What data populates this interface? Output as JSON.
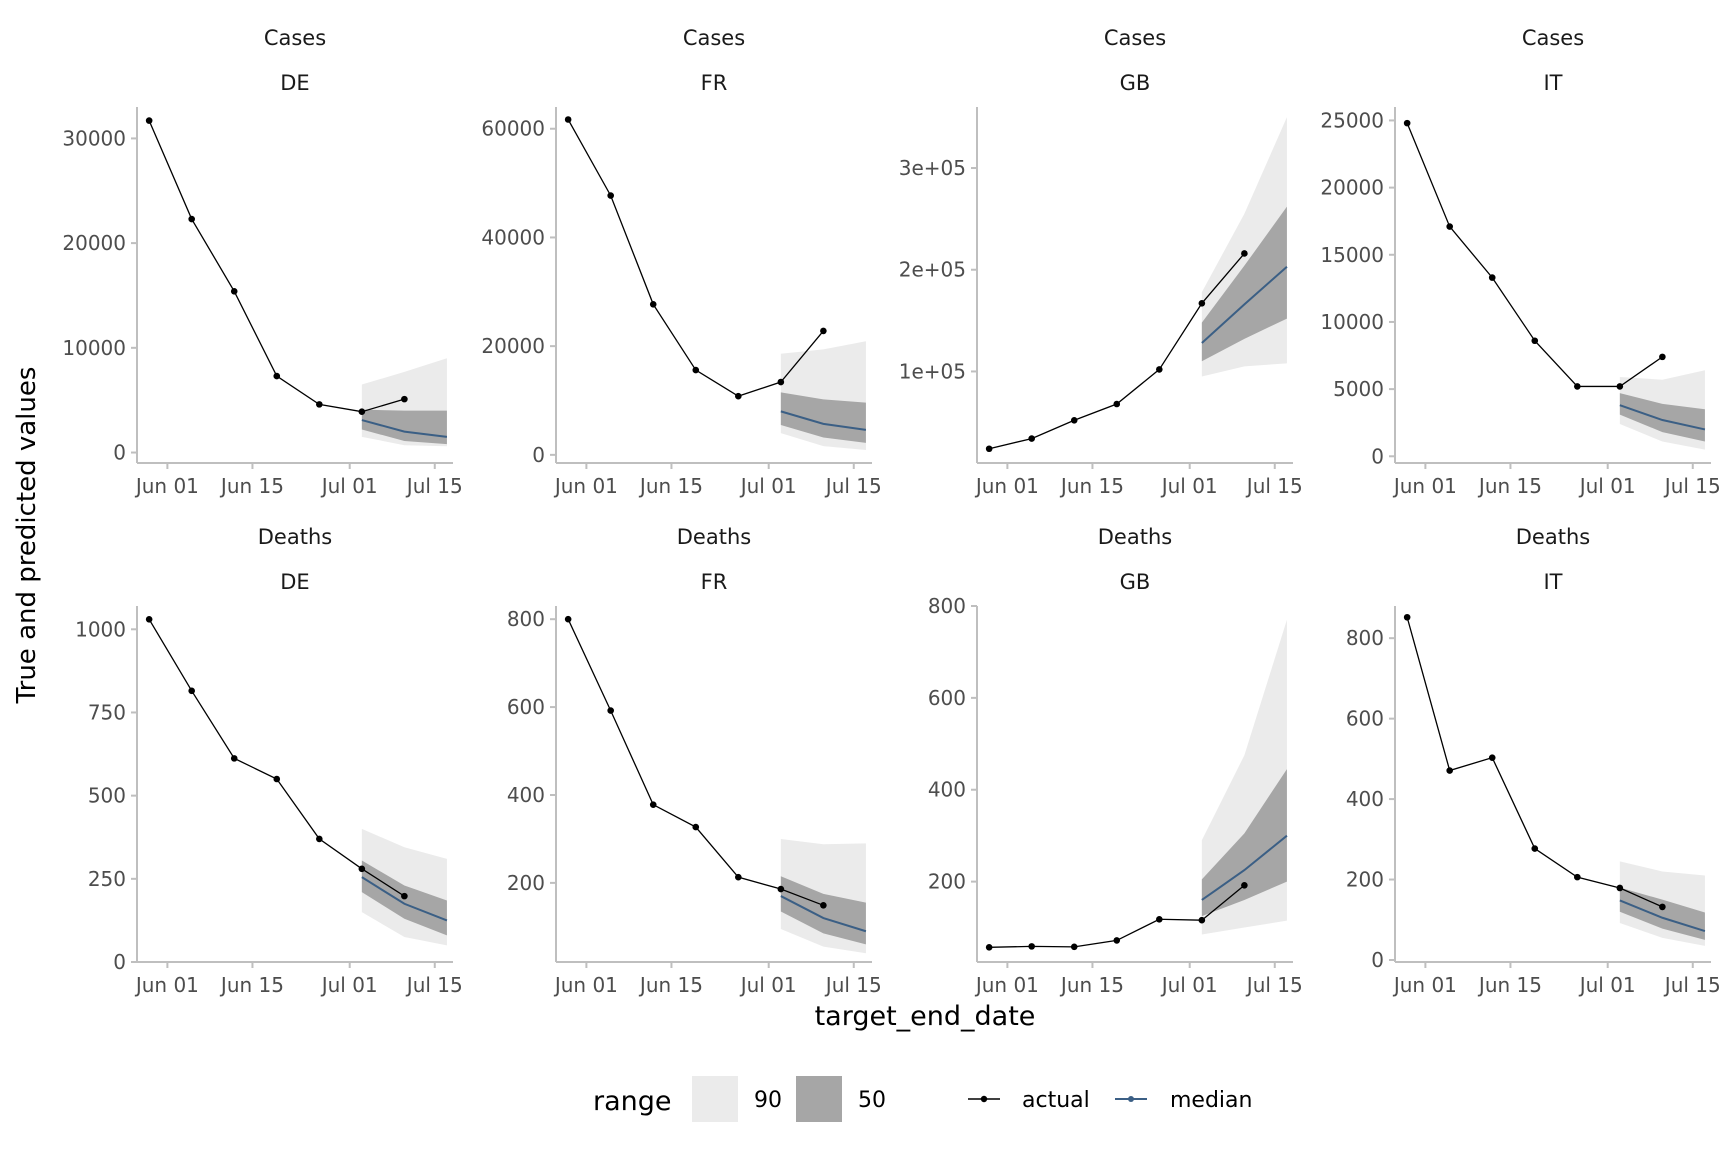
{
  "figure": {
    "ylabel": "True and predicted values",
    "xlabel": "target_end_date",
    "legend": {
      "range_title": "range",
      "range_entries": [
        {
          "label": "90",
          "color": "#ebebeb"
        },
        {
          "label": "50",
          "color": "#a6a6a6"
        }
      ],
      "line_entries": [
        {
          "label": "actual",
          "color": "#000000"
        },
        {
          "label": "median",
          "color": "#3b5f85"
        }
      ],
      "placement": "bottom"
    },
    "x_ticks": [
      "Jun 01",
      "Jun 15",
      "Jul 01",
      "Jul 15"
    ],
    "colors": {
      "actual": "#000000",
      "median": "#3b5f85",
      "band90": "#ebebeb",
      "band50": "#a6a6a6",
      "axis": "#bfbfbf"
    }
  },
  "chart_data": [
    {
      "type": "line",
      "target": "Cases",
      "location": "DE",
      "xlim": [
        "2021-05-27",
        "2021-07-18"
      ],
      "ylim": [
        -1000,
        33000
      ],
      "yticks": [
        0,
        10000,
        20000,
        30000
      ],
      "ytick_labels": [
        "0",
        "10000",
        "20000",
        "30000"
      ],
      "actual": {
        "x": [
          "2021-05-29",
          "2021-06-05",
          "2021-06-12",
          "2021-06-19",
          "2021-06-26",
          "2021-07-03",
          "2021-07-10"
        ],
        "y": [
          31700,
          22300,
          15400,
          7300,
          4600,
          3900,
          5100
        ]
      },
      "forecast": {
        "x": [
          "2021-07-03",
          "2021-07-10",
          "2021-07-17"
        ],
        "median": [
          3100,
          2000,
          1500
        ],
        "q50_low": [
          2200,
          1100,
          800
        ],
        "q50_high": [
          4100,
          4000,
          4000
        ],
        "q90_low": [
          1500,
          700,
          600
        ],
        "q90_high": [
          6500,
          7700,
          9000
        ]
      }
    },
    {
      "type": "line",
      "target": "Cases",
      "location": "FR",
      "xlim": [
        "2021-05-27",
        "2021-07-18"
      ],
      "ylim": [
        -1500,
        64000
      ],
      "yticks": [
        0,
        20000,
        40000,
        60000
      ],
      "ytick_labels": [
        "0",
        "20000",
        "40000",
        "60000"
      ],
      "actual": {
        "x": [
          "2021-05-29",
          "2021-06-05",
          "2021-06-12",
          "2021-06-19",
          "2021-06-26",
          "2021-07-03",
          "2021-07-10"
        ],
        "y": [
          61700,
          47700,
          27700,
          15600,
          10800,
          13400,
          22800
        ]
      },
      "forecast": {
        "x": [
          "2021-07-03",
          "2021-07-10",
          "2021-07-17"
        ],
        "median": [
          8000,
          5700,
          4600
        ],
        "q50_low": [
          5500,
          3200,
          2200
        ],
        "q50_high": [
          11500,
          10200,
          9600
        ],
        "q90_low": [
          4000,
          1600,
          900
        ],
        "q90_high": [
          18600,
          19400,
          20900
        ]
      }
    },
    {
      "type": "line",
      "target": "Cases",
      "location": "GB",
      "xlim": [
        "2021-05-27",
        "2021-07-18"
      ],
      "ylim": [
        10000,
        360000
      ],
      "yticks": [
        100000,
        200000,
        300000
      ],
      "ytick_labels": [
        "1e+05",
        "2e+05",
        "3e+05"
      ],
      "actual": {
        "x": [
          "2021-05-29",
          "2021-06-05",
          "2021-06-12",
          "2021-06-19",
          "2021-06-26",
          "2021-07-03",
          "2021-07-10"
        ],
        "y": [
          24000,
          34000,
          52000,
          68000,
          102000,
          167000,
          216000
        ]
      },
      "forecast": {
        "x": [
          "2021-07-03",
          "2021-07-10",
          "2021-07-17"
        ],
        "median": [
          128000,
          166000,
          203000
        ],
        "q50_low": [
          110000,
          132000,
          152000
        ],
        "q50_high": [
          148000,
          204000,
          262000
        ],
        "q90_low": [
          95000,
          105000,
          108000
        ],
        "q90_high": [
          178000,
          255000,
          350000
        ]
      }
    },
    {
      "type": "line",
      "target": "Cases",
      "location": "IT",
      "xlim": [
        "2021-05-27",
        "2021-07-18"
      ],
      "ylim": [
        -500,
        26000
      ],
      "yticks": [
        0,
        5000,
        10000,
        15000,
        20000,
        25000
      ],
      "ytick_labels": [
        "0",
        "5000",
        "10000",
        "15000",
        "20000",
        "25000"
      ],
      "actual": {
        "x": [
          "2021-05-29",
          "2021-06-05",
          "2021-06-12",
          "2021-06-19",
          "2021-06-26",
          "2021-07-03",
          "2021-07-10"
        ],
        "y": [
          24800,
          17100,
          13300,
          8600,
          5200,
          5200,
          7400
        ]
      },
      "forecast": {
        "x": [
          "2021-07-03",
          "2021-07-10",
          "2021-07-17"
        ],
        "median": [
          3800,
          2700,
          2000
        ],
        "q50_low": [
          3100,
          1800,
          1100
        ],
        "q50_high": [
          4700,
          3900,
          3500
        ],
        "q90_low": [
          2400,
          1100,
          500
        ],
        "q90_high": [
          5900,
          5700,
          6400
        ]
      }
    },
    {
      "type": "line",
      "target": "Deaths",
      "location": "DE",
      "xlim": [
        "2021-05-27",
        "2021-07-18"
      ],
      "ylim": [
        0,
        1070
      ],
      "yticks": [
        0,
        250,
        500,
        750,
        1000
      ],
      "ytick_labels": [
        "0",
        "250",
        "500",
        "750",
        "1000"
      ],
      "actual": {
        "x": [
          "2021-05-29",
          "2021-06-05",
          "2021-06-12",
          "2021-06-19",
          "2021-06-26",
          "2021-07-03",
          "2021-07-10"
        ],
        "y": [
          1030,
          815,
          612,
          550,
          370,
          280,
          198
        ]
      },
      "forecast": {
        "x": [
          "2021-07-03",
          "2021-07-10",
          "2021-07-17"
        ],
        "median": [
          255,
          175,
          125
        ],
        "q50_low": [
          210,
          130,
          80
        ],
        "q50_high": [
          305,
          230,
          185
        ],
        "q90_low": [
          150,
          75,
          50
        ],
        "q90_high": [
          400,
          345,
          310
        ]
      }
    },
    {
      "type": "line",
      "target": "Deaths",
      "location": "FR",
      "xlim": [
        "2021-05-27",
        "2021-07-18"
      ],
      "ylim": [
        20,
        830
      ],
      "yticks": [
        200,
        400,
        600,
        800
      ],
      "ytick_labels": [
        "200",
        "400",
        "600",
        "800"
      ],
      "actual": {
        "x": [
          "2021-05-29",
          "2021-06-05",
          "2021-06-12",
          "2021-06-19",
          "2021-06-26",
          "2021-07-03",
          "2021-07-10"
        ],
        "y": [
          800,
          592,
          378,
          327,
          213,
          186,
          149
        ]
      },
      "forecast": {
        "x": [
          "2021-07-03",
          "2021-07-10",
          "2021-07-17"
        ],
        "median": [
          170,
          120,
          90
        ],
        "q50_low": [
          135,
          85,
          60
        ],
        "q50_high": [
          215,
          175,
          155
        ],
        "q90_low": [
          95,
          55,
          40
        ],
        "q90_high": [
          300,
          288,
          290
        ]
      }
    },
    {
      "type": "line",
      "target": "Deaths",
      "location": "GB",
      "xlim": [
        "2021-05-27",
        "2021-07-18"
      ],
      "ylim": [
        25,
        800
      ],
      "yticks": [
        200,
        400,
        600,
        800
      ],
      "ytick_labels": [
        "200",
        "400",
        "600",
        "800"
      ],
      "actual": {
        "x": [
          "2021-05-29",
          "2021-06-05",
          "2021-06-12",
          "2021-06-19",
          "2021-06-26",
          "2021-07-03",
          "2021-07-10"
        ],
        "y": [
          57,
          59,
          58,
          72,
          118,
          116,
          192
        ]
      },
      "forecast": {
        "x": [
          "2021-07-03",
          "2021-07-10",
          "2021-07-17"
        ],
        "median": [
          160,
          225,
          300
        ],
        "q50_low": [
          125,
          160,
          200
        ],
        "q50_high": [
          205,
          305,
          445
        ],
        "q90_low": [
          85,
          100,
          115
        ],
        "q90_high": [
          290,
          475,
          770
        ]
      }
    },
    {
      "type": "line",
      "target": "Deaths",
      "location": "IT",
      "xlim": [
        "2021-05-27",
        "2021-07-18"
      ],
      "ylim": [
        -5,
        880
      ],
      "yticks": [
        0,
        200,
        400,
        600,
        800
      ],
      "ytick_labels": [
        "0",
        "200",
        "400",
        "600",
        "800"
      ],
      "actual": {
        "x": [
          "2021-05-29",
          "2021-06-05",
          "2021-06-12",
          "2021-06-19",
          "2021-06-26",
          "2021-07-03",
          "2021-07-10"
        ],
        "y": [
          852,
          471,
          503,
          277,
          206,
          179,
          132
        ]
      },
      "forecast": {
        "x": [
          "2021-07-03",
          "2021-07-10",
          "2021-07-17"
        ],
        "median": [
          148,
          105,
          72
        ],
        "q50_low": [
          120,
          78,
          50
        ],
        "q50_high": [
          180,
          150,
          118
        ],
        "q90_low": [
          92,
          55,
          35
        ],
        "q90_high": [
          245,
          220,
          210
        ]
      }
    }
  ]
}
